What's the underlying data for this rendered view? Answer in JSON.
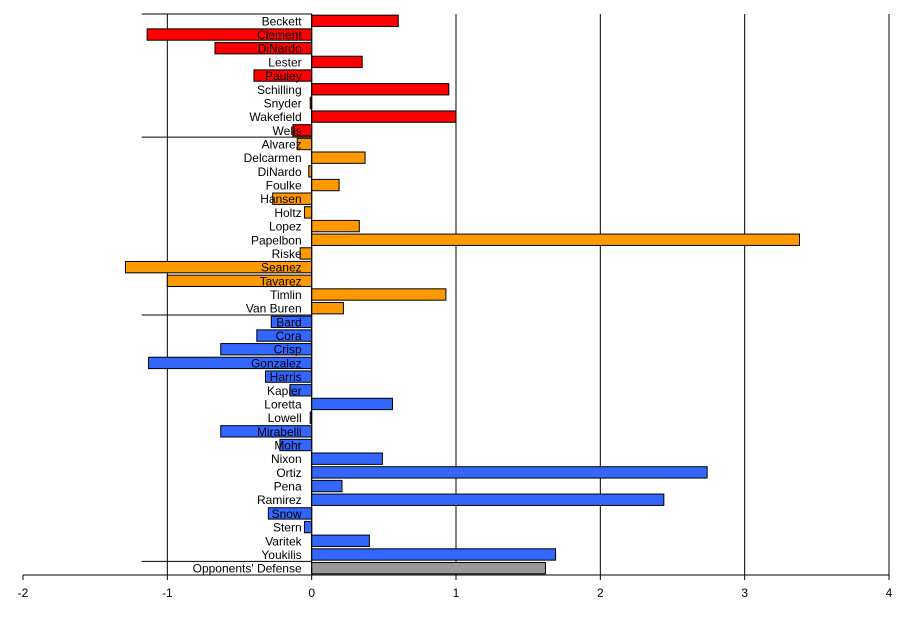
{
  "chart_data": {
    "type": "bar",
    "orientation": "horizontal",
    "title": "",
    "xlabel": "",
    "ylabel": "",
    "xlim": [
      -2,
      4
    ],
    "xticks": [
      "-2",
      "-1",
      "0",
      "1",
      "2",
      "3",
      "4"
    ],
    "grid": "vertical major gridlines",
    "legend": "none",
    "colors": {
      "red": "#ff0000",
      "orange": "#ff9900",
      "blue": "#3366ff",
      "gray": "#999999"
    },
    "categories": [
      "Beckett",
      "Clement",
      "DiNardo",
      "Lester",
      "Pauley",
      "Schilling",
      "Snyder",
      "Wakefield",
      "Wells",
      "Alvarez",
      "Delcarmen",
      "DiNardo",
      "Foulke",
      "Hansen",
      "Holtz",
      "Lopez",
      "Papelbon",
      "Riske",
      "Seanez",
      "Tavarez",
      "Timlin",
      "Van Buren",
      "Bard",
      "Cora",
      "Crisp",
      "Gonzalez",
      "Harris",
      "Kapler",
      "Loretta",
      "Lowell",
      "Mirabelli",
      "Mohr",
      "Nixon",
      "Ortiz",
      "Pena",
      "Ramirez",
      "Snow",
      "Stern",
      "Varitek",
      "Youkilis",
      "Opponents' Defense"
    ],
    "values": [
      0.6,
      -1.14,
      -0.67,
      0.35,
      -0.4,
      0.95,
      -0.01,
      1.0,
      -0.13,
      -0.1,
      0.37,
      -0.02,
      0.19,
      -0.27,
      -0.05,
      0.33,
      3.38,
      -0.08,
      -1.29,
      -1.0,
      0.93,
      0.22,
      -0.28,
      -0.38,
      -0.63,
      -1.13,
      -0.32,
      -0.15,
      0.56,
      -0.01,
      -0.63,
      -0.22,
      0.49,
      2.74,
      0.21,
      2.44,
      -0.3,
      -0.05,
      0.4,
      1.69,
      1.62
    ],
    "groups": [
      {
        "color": "red",
        "count": 9
      },
      {
        "color": "orange",
        "count": 13
      },
      {
        "color": "blue",
        "count": 18
      },
      {
        "color": "gray",
        "count": 1
      }
    ]
  }
}
